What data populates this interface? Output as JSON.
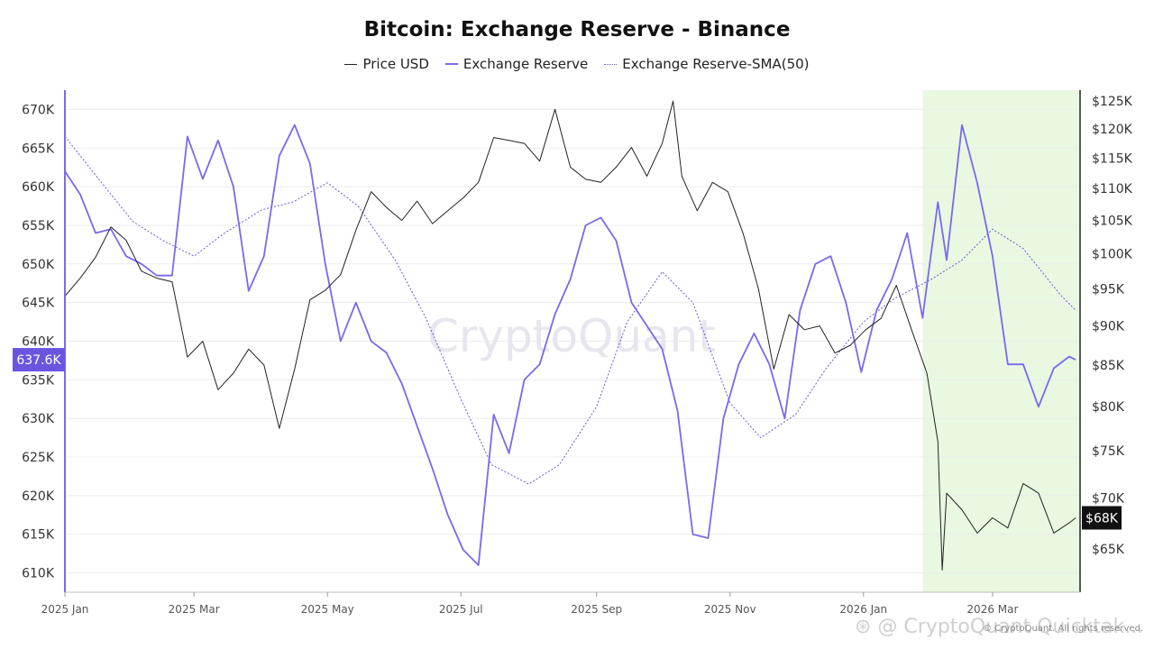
{
  "chart_data": {
    "type": "line",
    "title": "Bitcoin: Exchange Reserve - Binance",
    "legend": [
      {
        "name": "Price USD",
        "color": "#222222",
        "style": "solid"
      },
      {
        "name": "Exchange Reserve",
        "color": "#7b68ee",
        "style": "solid"
      },
      {
        "name": "Exchange Reserve-SMA(50)",
        "color": "#6a5acd",
        "style": "dotted"
      }
    ],
    "legend_position": "top-center",
    "x_range": [
      "2025-01-01",
      "2026-04-10"
    ],
    "x_ticks": [
      {
        "date": "2025-01-01",
        "label": "2025 Jan"
      },
      {
        "date": "2025-03-01",
        "label": "2025 Mar"
      },
      {
        "date": "2025-05-01",
        "label": "2025 May"
      },
      {
        "date": "2025-07-01",
        "label": "2025 Jul"
      },
      {
        "date": "2025-09-01",
        "label": "2025 Sep"
      },
      {
        "date": "2025-11-01",
        "label": "2025 Nov"
      },
      {
        "date": "2026-01-01",
        "label": "2026 Jan"
      },
      {
        "date": "2026-03-01",
        "label": "2026 Mar"
      }
    ],
    "y_left": {
      "range": [
        607500,
        672500
      ],
      "ticks": [
        610000,
        615000,
        620000,
        625000,
        630000,
        635000,
        640000,
        645000,
        650000,
        655000,
        660000,
        665000,
        670000
      ],
      "tick_labels": [
        "610K",
        "615K",
        "620K",
        "625K",
        "630K",
        "635K",
        "640K",
        "645K",
        "650K",
        "655K",
        "660K",
        "665K",
        "670K"
      ],
      "current_value_label": "637.6K",
      "current_value": 637600
    },
    "y_right": {
      "scale": "log",
      "range": [
        61000,
        127000
      ],
      "ticks": [
        65000,
        70000,
        75000,
        80000,
        85000,
        90000,
        95000,
        100000,
        105000,
        110000,
        115000,
        120000,
        125000
      ],
      "tick_labels": [
        "$65K",
        "$70K",
        "$75K",
        "$80K",
        "$85K",
        "$90K",
        "$95K",
        "$100K",
        "$105K",
        "$110K",
        "$115K",
        "$120K",
        "$125K"
      ],
      "current_value_label": "$68K",
      "current_value": 68000
    },
    "grid": true,
    "highlight_region": {
      "from": "2026-01-28",
      "to": "2026-04-10",
      "color": "#e9f8e1"
    },
    "series": [
      {
        "name": "Price USD",
        "axis": "right",
        "points": [
          [
            "2025-01-01",
            94000
          ],
          [
            "2025-01-08",
            96500
          ],
          [
            "2025-01-15",
            99500
          ],
          [
            "2025-01-22",
            104000
          ],
          [
            "2025-01-29",
            102000
          ],
          [
            "2025-02-05",
            97500
          ],
          [
            "2025-02-12",
            96500
          ],
          [
            "2025-02-19",
            96000
          ],
          [
            "2025-02-26",
            86000
          ],
          [
            "2025-03-05",
            88000
          ],
          [
            "2025-03-12",
            82000
          ],
          [
            "2025-03-19",
            84000
          ],
          [
            "2025-03-26",
            87000
          ],
          [
            "2025-04-02",
            85000
          ],
          [
            "2025-04-09",
            77500
          ],
          [
            "2025-04-16",
            84500
          ],
          [
            "2025-04-23",
            93500
          ],
          [
            "2025-04-30",
            94800
          ],
          [
            "2025-05-07",
            97000
          ],
          [
            "2025-05-14",
            103500
          ],
          [
            "2025-05-21",
            109500
          ],
          [
            "2025-05-28",
            107000
          ],
          [
            "2025-06-04",
            105000
          ],
          [
            "2025-06-11",
            108000
          ],
          [
            "2025-06-18",
            104500
          ],
          [
            "2025-06-25",
            106500
          ],
          [
            "2025-07-02",
            108500
          ],
          [
            "2025-07-09",
            111000
          ],
          [
            "2025-07-16",
            118500
          ],
          [
            "2025-07-23",
            118000
          ],
          [
            "2025-07-30",
            117500
          ],
          [
            "2025-08-06",
            114500
          ],
          [
            "2025-08-13",
            123500
          ],
          [
            "2025-08-20",
            113500
          ],
          [
            "2025-08-27",
            111500
          ],
          [
            "2025-09-03",
            111000
          ],
          [
            "2025-09-10",
            113500
          ],
          [
            "2025-09-17",
            116800
          ],
          [
            "2025-09-24",
            112000
          ],
          [
            "2025-10-01",
            117500
          ],
          [
            "2025-10-06",
            125000
          ],
          [
            "2025-10-10",
            112000
          ],
          [
            "2025-10-17",
            106500
          ],
          [
            "2025-10-24",
            111000
          ],
          [
            "2025-10-31",
            109500
          ],
          [
            "2025-11-07",
            103000
          ],
          [
            "2025-11-14",
            95000
          ],
          [
            "2025-11-21",
            84500
          ],
          [
            "2025-11-28",
            91500
          ],
          [
            "2025-12-05",
            89500
          ],
          [
            "2025-12-12",
            90000
          ],
          [
            "2025-12-19",
            86500
          ],
          [
            "2025-12-26",
            87500
          ],
          [
            "2026-01-02",
            89500
          ],
          [
            "2026-01-09",
            91000
          ],
          [
            "2026-01-16",
            95500
          ],
          [
            "2026-01-23",
            89500
          ],
          [
            "2026-01-30",
            84000
          ],
          [
            "2026-02-04",
            76000
          ],
          [
            "2026-02-06",
            63000
          ],
          [
            "2026-02-08",
            70500
          ],
          [
            "2026-02-15",
            68800
          ],
          [
            "2026-02-22",
            66500
          ],
          [
            "2026-03-01",
            68000
          ],
          [
            "2026-03-08",
            67000
          ],
          [
            "2026-03-15",
            71500
          ],
          [
            "2026-03-22",
            70500
          ],
          [
            "2026-03-29",
            66500
          ],
          [
            "2026-04-05",
            67500
          ],
          [
            "2026-04-08",
            68000
          ]
        ]
      },
      {
        "name": "Exchange Reserve",
        "axis": "left",
        "points": [
          [
            "2025-01-01",
            662000
          ],
          [
            "2025-01-08",
            659000
          ],
          [
            "2025-01-15",
            654000
          ],
          [
            "2025-01-22",
            654500
          ],
          [
            "2025-01-29",
            651000
          ],
          [
            "2025-02-05",
            650000
          ],
          [
            "2025-02-12",
            648500
          ],
          [
            "2025-02-19",
            648500
          ],
          [
            "2025-02-26",
            666500
          ],
          [
            "2025-03-05",
            661000
          ],
          [
            "2025-03-12",
            666000
          ],
          [
            "2025-03-19",
            660000
          ],
          [
            "2025-03-26",
            646500
          ],
          [
            "2025-04-02",
            651000
          ],
          [
            "2025-04-09",
            664000
          ],
          [
            "2025-04-16",
            668000
          ],
          [
            "2025-04-23",
            663000
          ],
          [
            "2025-04-30",
            650000
          ],
          [
            "2025-05-07",
            640000
          ],
          [
            "2025-05-14",
            645000
          ],
          [
            "2025-05-21",
            640000
          ],
          [
            "2025-05-28",
            638500
          ],
          [
            "2025-06-04",
            634500
          ],
          [
            "2025-06-11",
            629000
          ],
          [
            "2025-06-18",
            623500
          ],
          [
            "2025-06-25",
            617500
          ],
          [
            "2025-07-02",
            613000
          ],
          [
            "2025-07-09",
            611000
          ],
          [
            "2025-07-16",
            630500
          ],
          [
            "2025-07-23",
            625500
          ],
          [
            "2025-07-30",
            635000
          ],
          [
            "2025-08-06",
            637000
          ],
          [
            "2025-08-13",
            643500
          ],
          [
            "2025-08-20",
            648000
          ],
          [
            "2025-08-27",
            655000
          ],
          [
            "2025-09-03",
            656000
          ],
          [
            "2025-09-10",
            653000
          ],
          [
            "2025-09-17",
            645000
          ],
          [
            "2025-09-24",
            642000
          ],
          [
            "2025-10-01",
            639000
          ],
          [
            "2025-10-08",
            631000
          ],
          [
            "2025-10-15",
            615000
          ],
          [
            "2025-10-22",
            614500
          ],
          [
            "2025-10-29",
            630000
          ],
          [
            "2025-11-05",
            637000
          ],
          [
            "2025-11-12",
            641000
          ],
          [
            "2025-11-19",
            637000
          ],
          [
            "2025-11-26",
            630000
          ],
          [
            "2025-12-03",
            644000
          ],
          [
            "2025-12-10",
            650000
          ],
          [
            "2025-12-17",
            651000
          ],
          [
            "2025-12-24",
            645000
          ],
          [
            "2025-12-31",
            636000
          ],
          [
            "2026-01-07",
            644000
          ],
          [
            "2026-01-14",
            648000
          ],
          [
            "2026-01-21",
            654000
          ],
          [
            "2026-01-28",
            643000
          ],
          [
            "2026-02-04",
            658000
          ],
          [
            "2026-02-08",
            650500
          ],
          [
            "2026-02-15",
            668000
          ],
          [
            "2026-02-22",
            660500
          ],
          [
            "2026-03-01",
            651000
          ],
          [
            "2026-03-08",
            637000
          ],
          [
            "2026-03-15",
            637000
          ],
          [
            "2026-03-22",
            631500
          ],
          [
            "2026-03-29",
            636500
          ],
          [
            "2026-04-05",
            638000
          ],
          [
            "2026-04-08",
            637600
          ]
        ]
      },
      {
        "name": "Exchange Reserve-SMA(50)",
        "axis": "left",
        "points": [
          [
            "2025-01-01",
            666500
          ],
          [
            "2025-01-15",
            661500
          ],
          [
            "2025-02-01",
            655500
          ],
          [
            "2025-02-15",
            653000
          ],
          [
            "2025-03-01",
            651000
          ],
          [
            "2025-03-15",
            654000
          ],
          [
            "2025-04-01",
            657000
          ],
          [
            "2025-04-15",
            658000
          ],
          [
            "2025-05-01",
            660500
          ],
          [
            "2025-05-15",
            657500
          ],
          [
            "2025-06-01",
            650500
          ],
          [
            "2025-06-15",
            643000
          ],
          [
            "2025-07-01",
            632500
          ],
          [
            "2025-07-15",
            624000
          ],
          [
            "2025-08-01",
            621500
          ],
          [
            "2025-08-15",
            624000
          ],
          [
            "2025-09-01",
            631500
          ],
          [
            "2025-09-15",
            642500
          ],
          [
            "2025-10-01",
            649000
          ],
          [
            "2025-10-15",
            645000
          ],
          [
            "2025-11-01",
            632000
          ],
          [
            "2025-11-15",
            627500
          ],
          [
            "2025-12-01",
            630500
          ],
          [
            "2025-12-15",
            636500
          ],
          [
            "2026-01-01",
            642500
          ],
          [
            "2026-01-15",
            645500
          ],
          [
            "2026-02-01",
            648000
          ],
          [
            "2026-02-15",
            650500
          ],
          [
            "2026-03-01",
            654500
          ],
          [
            "2026-03-15",
            652000
          ],
          [
            "2026-04-01",
            646000
          ],
          [
            "2026-04-08",
            644000
          ]
        ]
      }
    ]
  },
  "footer": {
    "watermark": "CryptoQuant",
    "left_text": "⊛ @ CryptoQuant Quicktak...",
    "right_text": "© CryptoQuant. All rights reserved."
  }
}
